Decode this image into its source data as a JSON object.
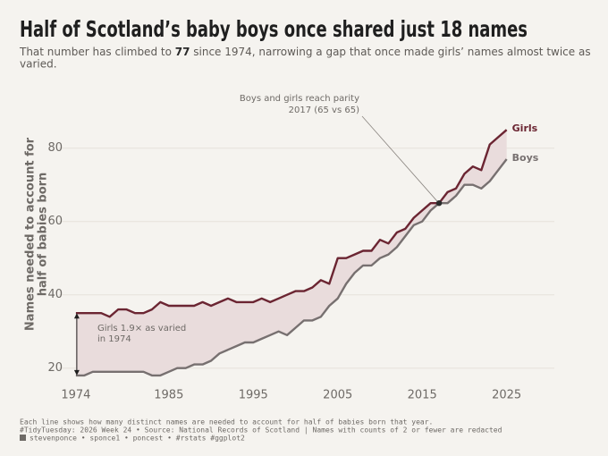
{
  "chart_data": {
    "type": "line",
    "title": "Half of Scotland’s baby boys once shared just 18 names",
    "subtitle": [
      "That number has climbed to ",
      "77",
      " since 1974, narrowing a gap that once made girls’ names almost twice as",
      "varied."
    ],
    "y_label": [
      "Names needed to account for",
      "half of babies born"
    ],
    "x": [
      1974,
      1975,
      1976,
      1977,
      1978,
      1979,
      1980,
      1981,
      1982,
      1983,
      1984,
      1985,
      1986,
      1987,
      1988,
      1989,
      1990,
      1991,
      1992,
      1993,
      1994,
      1995,
      1996,
      1997,
      1998,
      1999,
      2000,
      2001,
      2002,
      2003,
      2004,
      2005,
      2006,
      2007,
      2008,
      2009,
      2010,
      2011,
      2012,
      2013,
      2014,
      2015,
      2016,
      2017,
      2018,
      2019,
      2020,
      2021,
      2022,
      2023,
      2024,
      2025
    ],
    "series": [
      {
        "name": "Girls",
        "color": "#6b2532",
        "values": [
          35,
          35,
          35,
          35,
          34,
          36,
          36,
          35,
          35,
          36,
          38,
          37,
          37,
          37,
          37,
          38,
          37,
          38,
          39,
          38,
          38,
          38,
          39,
          38,
          39,
          40,
          41,
          41,
          42,
          44,
          43,
          50,
          50,
          51,
          52,
          52,
          55,
          54,
          57,
          58,
          61,
          63,
          65,
          65,
          68,
          69,
          73,
          75,
          74,
          81,
          83,
          85
        ]
      },
      {
        "name": "Boys",
        "color": "#777070",
        "values": [
          18,
          18,
          19,
          19,
          19,
          19,
          19,
          19,
          19,
          18,
          18,
          19,
          20,
          20,
          21,
          21,
          22,
          24,
          25,
          26,
          27,
          27,
          28,
          29,
          30,
          29,
          31,
          33,
          33,
          34,
          37,
          39,
          43,
          46,
          48,
          48,
          50,
          51,
          53,
          56,
          59,
          60,
          63,
          65,
          65,
          67,
          70,
          70,
          69,
          71,
          74,
          77
        ]
      }
    ],
    "ribbon_color": "#e9dcdc",
    "xlim": [
      1972,
      2028
    ],
    "xticks": [
      1974,
      1985,
      1995,
      2005,
      2015,
      2025
    ],
    "ylim": [
      17,
      87
    ],
    "yticks": [
      20,
      40,
      60,
      80
    ],
    "grid": true,
    "annotations": [
      {
        "text": [
          "Boys and girls reach parity",
          "2017 (65 vs 65)"
        ],
        "x": 2017,
        "y": 65
      },
      {
        "text": [
          "Girls 1.9× as varied",
          "in 1974"
        ],
        "x": 1974
      }
    ],
    "caption": [
      "Each line shows how many distinct names are needed to account for half of babies born that year.",
      "#TidyTuesday: 2026 Week 24 • Source: National Records of Scotland | Names with counts of 2 or fewer are redacted",
      "stevenponce • sponce1 • poncest • #rstats #ggplot2"
    ]
  }
}
